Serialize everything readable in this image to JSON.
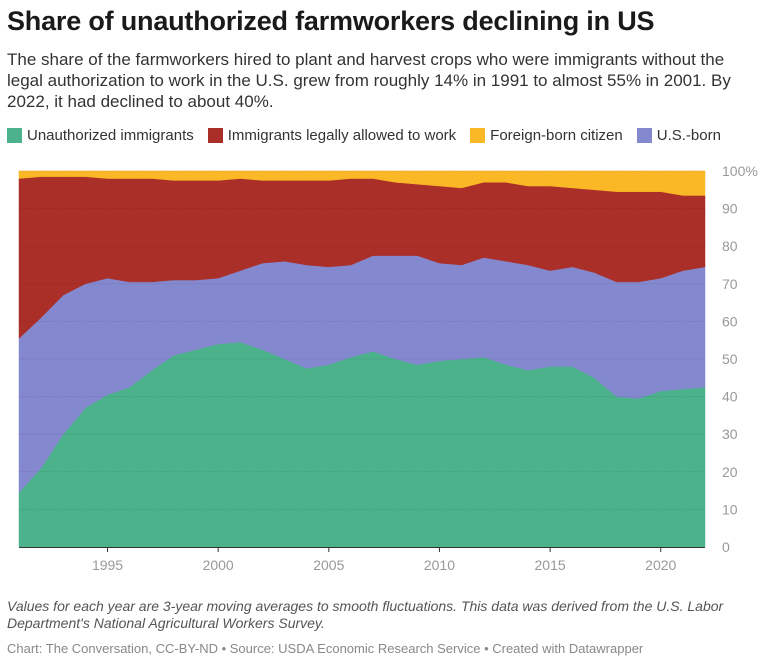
{
  "title": "Share of unauthorized farmworkers declining in US",
  "subtitle": "The share of the farmworkers hired to plant and harvest crops who were immigrants without the legal authorization to work in the U.S. grew from roughly 14% in 1991 to almost 55% in 2001. By 2022, it had declined to about 40%.",
  "legend": [
    {
      "label": "Unauthorized immigrants",
      "color": "#4cb28c"
    },
    {
      "label": "Immigrants legally allowed to work",
      "color": "#aa2f29"
    },
    {
      "label": "Foreign-born citizen",
      "color": "#fbb826"
    },
    {
      "label": "U.S.-born",
      "color": "#8489cf"
    }
  ],
  "note": "Values for each year are 3-year moving averages to smooth fluctuations. This data was derived from the U.S. Labor Department's National Agricultural Workers Survey.",
  "credit": "Chart: The Conversation, CC-BY-ND • Source: USDA Economic Research Service • Created with Datawrapper",
  "chart_data": {
    "type": "area",
    "stacked": true,
    "x": [
      1991,
      1992,
      1993,
      1994,
      1995,
      1996,
      1997,
      1998,
      1999,
      2000,
      2001,
      2002,
      2003,
      2004,
      2005,
      2006,
      2007,
      2008,
      2009,
      2010,
      2011,
      2012,
      2013,
      2014,
      2015,
      2016,
      2017,
      2018,
      2019,
      2020,
      2021,
      2022
    ],
    "x_ticks": [
      1995,
      2000,
      2005,
      2010,
      2015,
      2020
    ],
    "y_ticks": [
      0,
      10,
      20,
      30,
      40,
      50,
      60,
      70,
      80,
      90,
      100
    ],
    "y_tick_suffix_top": "%",
    "ylim": [
      0,
      100
    ],
    "grid": "horizontal",
    "legend_position": "top",
    "series": [
      {
        "name": "Unauthorized immigrants",
        "color": "#4cb28c",
        "values": [
          14.5,
          21,
          30,
          37,
          40.5,
          42.5,
          47,
          51,
          52.5,
          54,
          54.5,
          52.5,
          50,
          47.5,
          48.5,
          50.5,
          52,
          50,
          48.5,
          49.5,
          50,
          50.5,
          48.5,
          47,
          48,
          48,
          45,
          40,
          39.5,
          41.5,
          42,
          42.5
        ]
      },
      {
        "name": "U.S.-born",
        "color": "#8489cf",
        "values": [
          41,
          40,
          37,
          33,
          31,
          28,
          23.5,
          20,
          18.5,
          17.5,
          19,
          23,
          26,
          27.5,
          26,
          24.5,
          25.5,
          27.5,
          29,
          26,
          25,
          26.5,
          27.5,
          28,
          25.5,
          26.5,
          28,
          30.5,
          31,
          30,
          31.5,
          32
        ]
      },
      {
        "name": "Immigrants legally allowed to work",
        "color": "#aa2f29",
        "values": [
          42.5,
          37.5,
          31.5,
          28.5,
          26.5,
          27.5,
          27.5,
          26.5,
          26.5,
          26,
          24.5,
          22,
          21.5,
          22.5,
          23,
          23,
          20.5,
          19.5,
          19,
          20.5,
          20.5,
          20,
          21,
          21,
          22.5,
          21,
          22,
          24,
          24,
          23,
          20,
          19
        ]
      },
      {
        "name": "Foreign-born citizen",
        "color": "#fbb826",
        "values": [
          2,
          1.5,
          1.5,
          1.5,
          2,
          2,
          2,
          2.5,
          2.5,
          2.5,
          2,
          2.5,
          2.5,
          2.5,
          2.5,
          2,
          2,
          3,
          3.5,
          4,
          4.5,
          3,
          3,
          4,
          4,
          4.5,
          5,
          5.5,
          5.5,
          5.5,
          6.5,
          6.5
        ]
      }
    ]
  }
}
